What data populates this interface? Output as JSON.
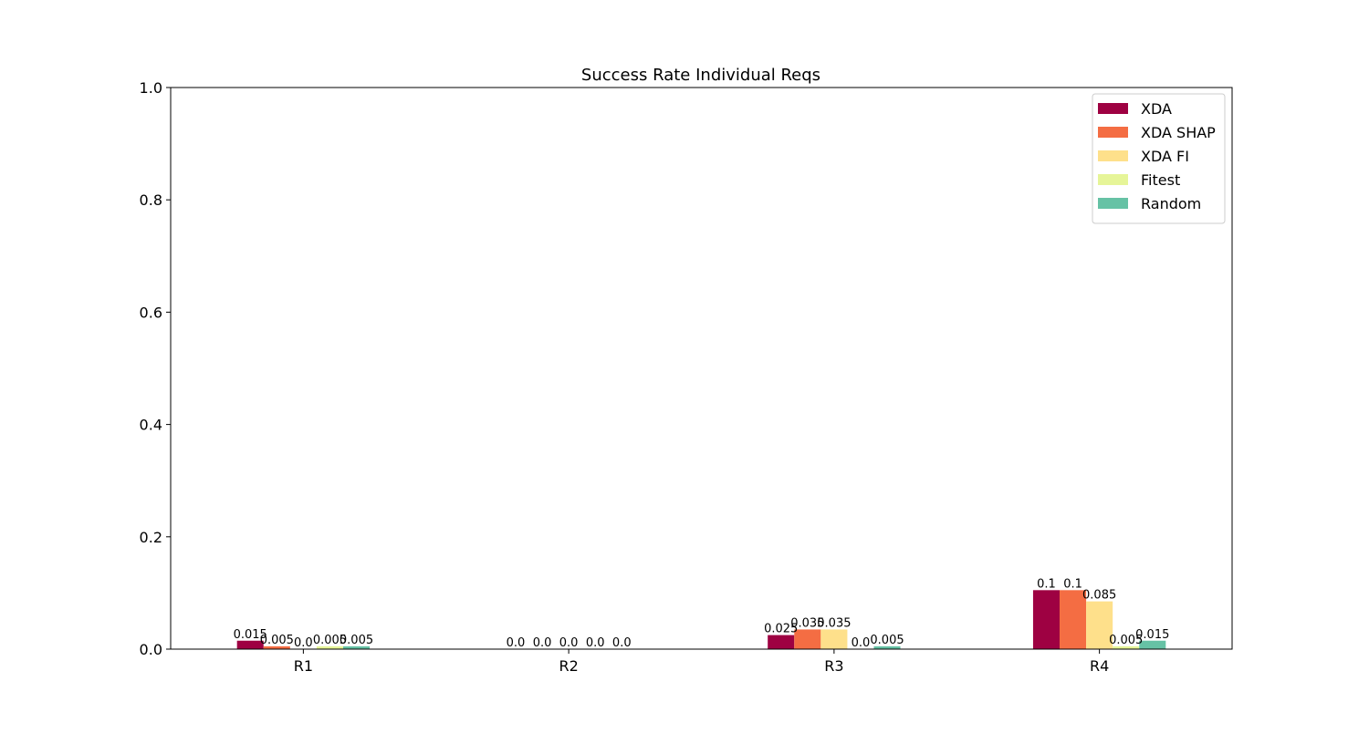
{
  "chart_data": {
    "type": "bar",
    "title": "Success Rate Individual Reqs",
    "xlabel": "",
    "ylabel": "",
    "categories": [
      "R1",
      "R2",
      "R3",
      "R4"
    ],
    "ylim": [
      0,
      1.0
    ],
    "yticks": [
      "0.0",
      "0.2",
      "0.4",
      "0.6",
      "0.8",
      "1.0"
    ],
    "grid": false,
    "legend_position": "top-right",
    "series": [
      {
        "name": "XDA",
        "color": "#9e0142",
        "values": [
          0.015,
          0.0,
          0.025,
          0.105
        ],
        "labels": [
          "0.015",
          "0.0",
          "0.025",
          "0.1"
        ]
      },
      {
        "name": "XDA SHAP",
        "color": "#f46d43",
        "values": [
          0.005,
          0.0,
          0.035,
          0.105
        ],
        "labels": [
          "0.005",
          "0.0",
          "0.035",
          "0.1"
        ]
      },
      {
        "name": "XDA FI",
        "color": "#fee08b",
        "values": [
          0.0,
          0.0,
          0.035,
          0.085
        ],
        "labels": [
          "0.0",
          "0.0",
          "0.035",
          "0.085"
        ]
      },
      {
        "name": "Fitest",
        "color": "#e6f598",
        "values": [
          0.005,
          0.0,
          0.0,
          0.005
        ],
        "labels": [
          "0.005",
          "0.0",
          "0.0",
          "0.005"
        ]
      },
      {
        "name": "Random",
        "color": "#66c2a5",
        "values": [
          0.005,
          0.0,
          0.005,
          0.015
        ],
        "labels": [
          "0.005",
          "0.0",
          "0.005",
          "0.015"
        ]
      }
    ]
  }
}
